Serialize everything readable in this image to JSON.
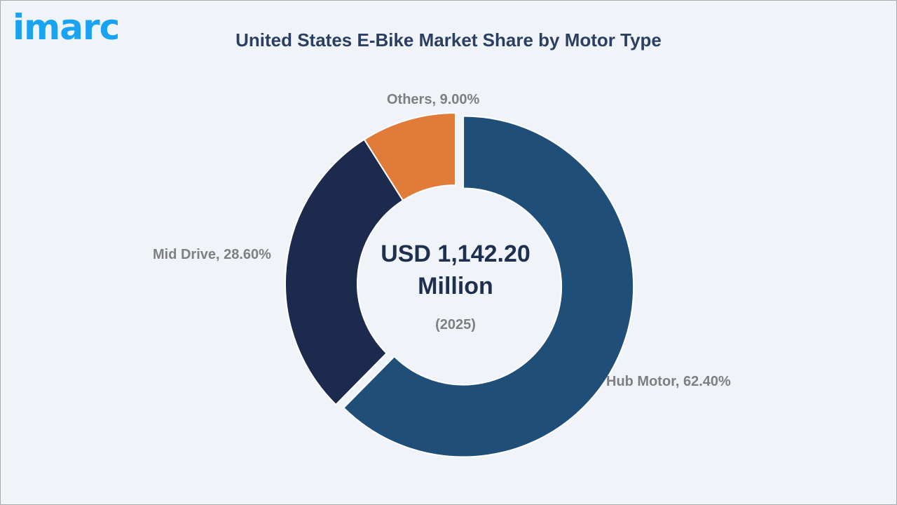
{
  "header": {
    "logo_text": "imarc",
    "title": "United States E-Bike Market Share by Motor Type"
  },
  "center": {
    "value_line1": "USD 1,142.20",
    "value_line2": "Million",
    "year": "(2025)"
  },
  "labels": {
    "hub_motor": "Hub Motor, 62.40%",
    "mid_drive": "Mid Drive, 28.60%",
    "others": "Others, 9.00%"
  },
  "colors": {
    "hub_motor": "#1f4e79",
    "mid_drive": "#1c2a4d",
    "others": "#e07b39",
    "logo": "#1aa3f0",
    "title": "#2b3f63",
    "background": "#f0f4f9"
  },
  "chart_data": {
    "type": "pie",
    "subtype": "donut",
    "title": "United States E-Bike Market Share by Motor Type",
    "categories": [
      "Hub Motor",
      "Mid Drive",
      "Others"
    ],
    "values": [
      62.4,
      28.6,
      9.0
    ],
    "unit": "%",
    "center_annotation": "USD 1,142.20 Million (2025)",
    "exploded": [
      "Hub Motor"
    ],
    "legend": "none (data labels)"
  }
}
